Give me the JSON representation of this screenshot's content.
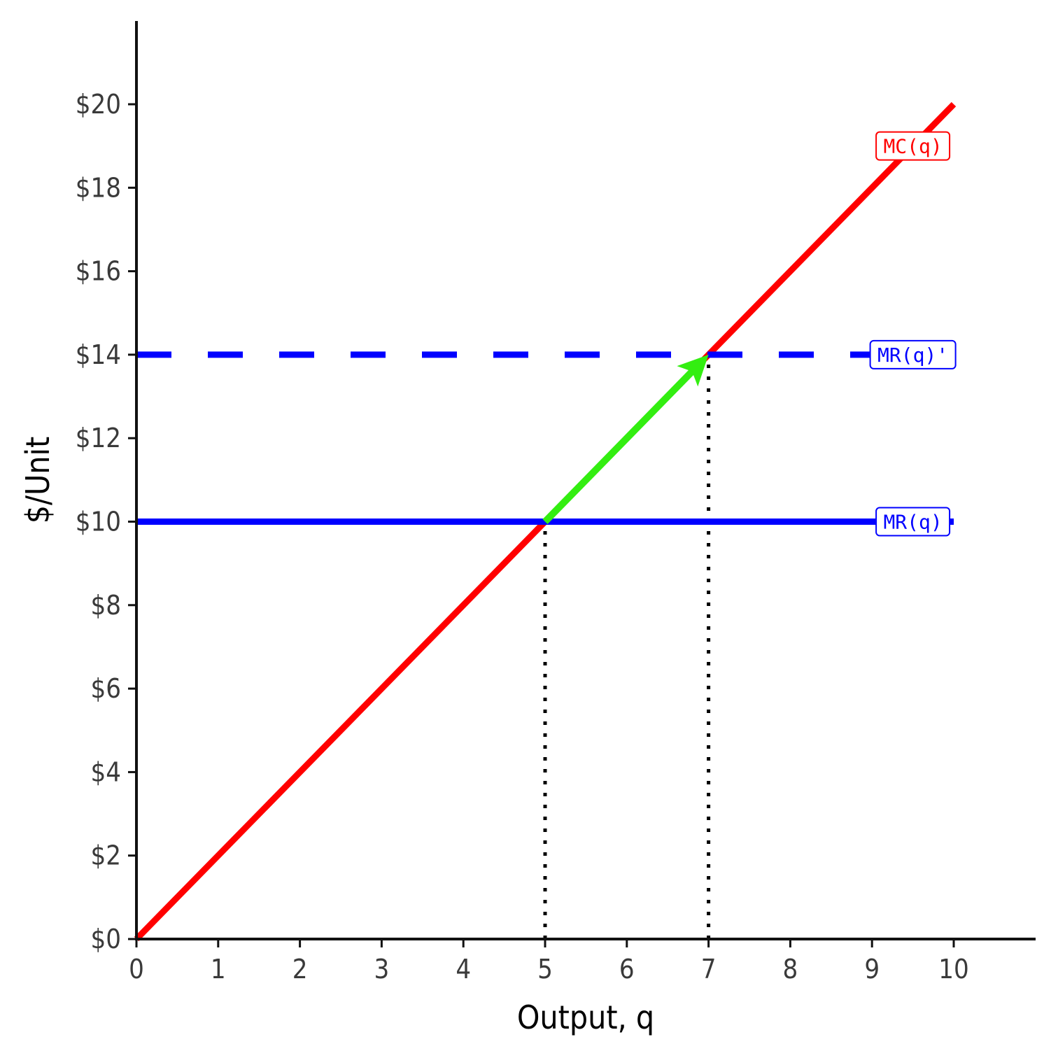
{
  "chart_data": {
    "type": "line",
    "xlabel": "Output, q",
    "ylabel": "$/Unit",
    "xlim": [
      0,
      11
    ],
    "ylim": [
      0,
      22
    ],
    "x_ticks": [
      0,
      1,
      2,
      3,
      4,
      5,
      6,
      7,
      8,
      9,
      10
    ],
    "x_tick_labels": [
      "0",
      "1",
      "2",
      "3",
      "4",
      "5",
      "6",
      "7",
      "8",
      "9",
      "10"
    ],
    "y_ticks": [
      0,
      2,
      4,
      6,
      8,
      10,
      12,
      14,
      16,
      18,
      20
    ],
    "y_tick_labels": [
      "$0",
      "$2",
      "$4",
      "$6",
      "$8",
      "$10",
      "$12",
      "$14",
      "$16",
      "$18",
      "$20"
    ],
    "grid": false,
    "series": [
      {
        "name": "MC(q)",
        "color": "#ff0000",
        "style": "solid",
        "x": [
          0,
          10
        ],
        "y": [
          0,
          20
        ],
        "label_at": [
          9.5,
          19
        ]
      },
      {
        "name": "MR(q)",
        "color": "#0000ff",
        "style": "solid",
        "x": [
          0,
          10
        ],
        "y": [
          10,
          10
        ],
        "label_at": [
          9.5,
          10
        ]
      },
      {
        "name": "MR(q)'",
        "color": "#0000ff",
        "style": "dashed",
        "x": [
          0,
          10
        ],
        "y": [
          14,
          14
        ],
        "label_at": [
          9.5,
          14
        ]
      }
    ],
    "reference_lines": [
      {
        "x": 5,
        "y_from": 0,
        "y_to": 10,
        "style": "dotted",
        "color": "#000000"
      },
      {
        "x": 7,
        "y_from": 0,
        "y_to": 14,
        "style": "dotted",
        "color": "#000000"
      }
    ],
    "arrows": [
      {
        "from": [
          5,
          10
        ],
        "to": [
          7,
          14
        ],
        "color": "#33ee11"
      }
    ]
  }
}
